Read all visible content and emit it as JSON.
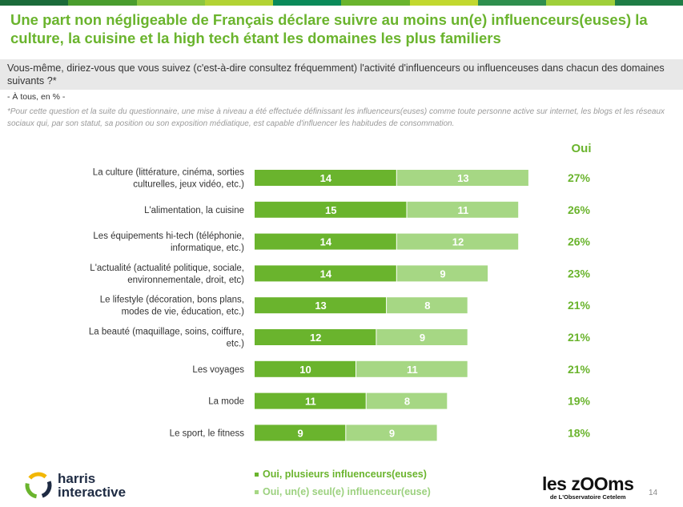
{
  "top_strip_colors": [
    "#1b6b3a",
    "#4a9d2e",
    "#8cc63f",
    "#b3d334",
    "#0a8a5a",
    "#6ab42d",
    "#c2d82f",
    "#2f8f4e",
    "#9fcf3a",
    "#1f7d46"
  ],
  "header": {
    "title": "Une part non négligeable de Français déclare suivre au moins un(e) influenceurs(euses) la culture, la cuisine et la high tech étant les domaines les plus familiers",
    "question": "Vous-même, diriez-vous que vous suivez (c'est-à-dire consultez fréquemment) l'activité d'influenceurs ou influenceuses dans chacun des domaines suivants ?*",
    "base": "- À tous, en % -",
    "footnote": "*Pour cette question et la suite du questionnaire, une mise à niveau a été effectuée définissant les influenceurs(euses) comme toute personne active sur internet, les blogs et les réseaux sociaux qui, par son statut, sa position ou son exposition médiatique, est capable d'influencer les habitudes de consommation."
  },
  "chart_data": {
    "type": "bar",
    "orientation": "horizontal",
    "stacked": true,
    "categories": [
      [
        "La culture (littérature, cinéma, sorties",
        "culturelles, jeux vidéo, etc.)"
      ],
      [
        "L'alimentation, la cuisine"
      ],
      [
        "Les équipements hi-tech (téléphonie,",
        "informatique, etc.)"
      ],
      [
        "L'actualité (actualité politique, sociale,",
        "environnementale, droit, etc)"
      ],
      [
        "Le lifestyle (décoration, bons plans,",
        "modes de vie, éducation, etc.)"
      ],
      [
        "La beauté (maquillage, soins, coiffure,",
        "etc.)"
      ],
      [
        "Les voyages"
      ],
      [
        "La mode"
      ],
      [
        "Le sport, le fitness"
      ]
    ],
    "series": [
      {
        "name": "Oui, plusieurs influenceurs(euses)",
        "color": "#6ab42d",
        "values": [
          14,
          15,
          14,
          14,
          13,
          12,
          10,
          11,
          9
        ]
      },
      {
        "name": "Oui, un(e) seul(e) influenceur(euse)",
        "color": "#a6d784",
        "values": [
          13,
          11,
          12,
          9,
          8,
          9,
          11,
          8,
          9
        ]
      }
    ],
    "totals_header": "Oui",
    "totals": [
      "27%",
      "26%",
      "26%",
      "23%",
      "21%",
      "21%",
      "21%",
      "19%",
      "18%"
    ],
    "label_color": "#ffffff",
    "total_color": "#6ab42d"
  },
  "legend": {
    "item1": "Oui, plusieurs influenceurs(euses)",
    "item2": "Oui, un(e) seul(e) influenceur(euse)",
    "color1": "#6ab42d",
    "color2": "#a6d784"
  },
  "footer": {
    "harris_line1": "harris",
    "harris_line2": "interactive",
    "zooms_big": "les zOOms",
    "zooms_small": "de L'Observatoire Cetelem",
    "page_number": "14"
  }
}
